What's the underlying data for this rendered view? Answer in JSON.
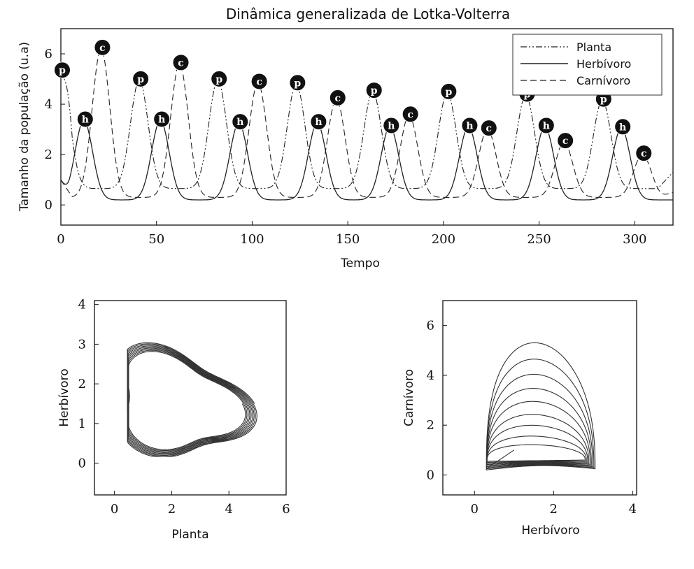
{
  "chart_data": [
    {
      "type": "line",
      "title": "Dinâmica generalizada de Lotka-Volterra",
      "xlabel": "Tempo",
      "ylabel": "Tamanho da população (u.a)",
      "xlim": [
        0,
        320
      ],
      "ylim": [
        -0.8,
        7.0
      ],
      "xticks": [
        0,
        50,
        100,
        150,
        200,
        250,
        300
      ],
      "yticks": [
        0,
        2,
        4,
        6
      ],
      "legend_position": "top-right",
      "series": [
        {
          "name": "Planta",
          "style": "dashdotdot",
          "marker_label": "p",
          "initial": 5.0,
          "base": 0.65,
          "peaks": [
            [
              0,
              5.3
            ],
            [
              41,
              4.95
            ],
            [
              82,
              4.95
            ],
            [
              123,
              4.8
            ],
            [
              163,
              4.5
            ],
            [
              202,
              4.45
            ],
            [
              243,
              4.35
            ],
            [
              283,
              4.15
            ]
          ],
          "end_value": 1.3
        },
        {
          "name": "Herbívoro",
          "style": "solid",
          "marker_label": "h",
          "initial": 1.0,
          "base": 0.2,
          "peaks": [
            [
              12,
              3.35
            ],
            [
              52,
              3.35
            ],
            [
              93,
              3.25
            ],
            [
              134,
              3.25
            ],
            [
              172,
              3.1
            ],
            [
              213,
              3.1
            ],
            [
              253,
              3.1
            ],
            [
              293,
              3.05
            ]
          ],
          "end_value": 0.2
        },
        {
          "name": "Carnívoro",
          "style": "dashed",
          "marker_label": "c",
          "initial": 1.0,
          "base": 0.3,
          "peaks": [
            [
              21,
              6.2
            ],
            [
              62,
              5.6
            ],
            [
              103,
              4.85
            ],
            [
              144,
              4.2
            ],
            [
              182,
              3.55
            ],
            [
              223,
              3.0
            ],
            [
              263,
              2.5
            ],
            [
              304,
              2.0
            ]
          ],
          "end_value": 0.5
        }
      ]
    },
    {
      "type": "line",
      "xlabel": "Planta",
      "ylabel": "Herbívoro",
      "xlim": [
        -0.7,
        6.0
      ],
      "ylim": [
        -0.8,
        4.1
      ],
      "xticks": [
        0,
        2,
        4,
        6
      ],
      "yticks": [
        0,
        1,
        2,
        3,
        4
      ],
      "phase": {
        "loops": 9,
        "start": [
          5.0,
          1.0
        ],
        "end_scale": 0.84
      }
    },
    {
      "type": "line",
      "xlabel": "Herbívoro",
      "ylabel": "Carnívoro",
      "xlim": [
        -0.8,
        4.1
      ],
      "ylim": [
        -0.8,
        7.0
      ],
      "xticks": [
        0,
        2,
        4
      ],
      "yticks": [
        0,
        2,
        4,
        6
      ],
      "phase": {
        "loops": 9,
        "start": [
          1.0,
          1.0
        ],
        "top_values": [
          6.0,
          5.25,
          4.55,
          3.9,
          3.3,
          2.7,
          2.2,
          1.7,
          1.3
        ]
      }
    }
  ]
}
